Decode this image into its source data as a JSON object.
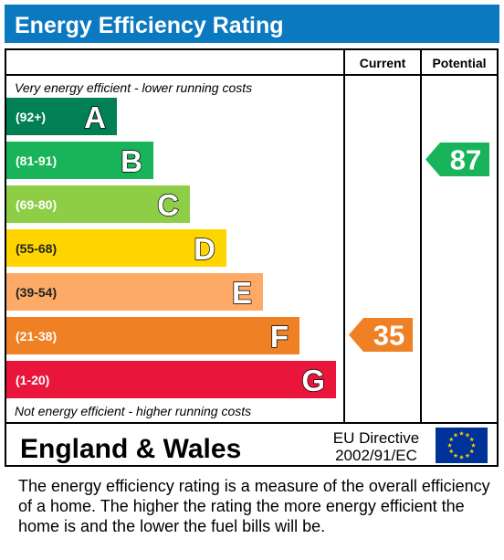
{
  "title": "Energy Efficiency Rating",
  "headers": {
    "current": "Current",
    "potential": "Potential"
  },
  "top_note": "Very energy efficient - lower running costs",
  "bottom_note": "Not energy efficient - higher running costs",
  "region": "England & Wales",
  "directive_line1": "EU Directive",
  "directive_line2": "2002/91/EC",
  "footer_text": "The energy efficiency rating is a measure of the overall efficiency of a home.  The higher the rating the more energy efficient the home is and the lower the fuel bills will be.",
  "colors": {
    "title_bg": "#0a79bf",
    "A": "#008054",
    "B": "#19b459",
    "C": "#8dce46",
    "D": "#ffd500",
    "E": "#fcaa65",
    "F": "#ef8023",
    "G": "#e9153b",
    "eu_flag": "#003399",
    "eu_stars": "#ffcc00"
  },
  "chart_data": {
    "type": "bar",
    "categories": [
      "A",
      "B",
      "C",
      "D",
      "E",
      "F",
      "G"
    ],
    "ranges": [
      "(92+)",
      "(81-91)",
      "(69-80)",
      "(55-68)",
      "(39-54)",
      "(21-38)",
      "(1-20)"
    ],
    "values": [
      1,
      2,
      3,
      4,
      5,
      6,
      7
    ],
    "current": {
      "value": 35,
      "band": "F",
      "color": "#ef8023"
    },
    "potential": {
      "value": 87,
      "band": "B",
      "color": "#19b459"
    }
  }
}
